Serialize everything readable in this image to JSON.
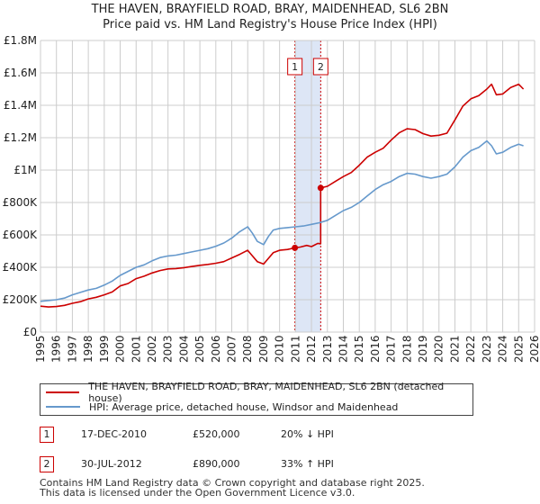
{
  "title_line1": "THE HAVEN, BRAYFIELD ROAD, BRAY, MAIDENHEAD, SL6 2BN",
  "title_line2": "Price paid vs. HM Land Registry's House Price Index (HPI)",
  "colors": {
    "property": "#cc0000",
    "hpi": "#6699cc",
    "highlight": "#dde6f6",
    "grid": "#cccccc"
  },
  "legend": {
    "property": "THE HAVEN, BRAYFIELD ROAD, BRAY, MAIDENHEAD, SL6 2BN (detached house)",
    "hpi": "HPI: Average price, detached house, Windsor and Maidenhead"
  },
  "transactions": [
    {
      "marker": "1",
      "date": "17-DEC-2010",
      "price": "£520,000",
      "delta": "20% ↓ HPI"
    },
    {
      "marker": "2",
      "date": "30-JUL-2012",
      "price": "£890,000",
      "delta": "33% ↑ HPI"
    }
  ],
  "footer_line1": "Contains HM Land Registry data © Crown copyright and database right 2025.",
  "footer_line2": "This data is licensed under the Open Government Licence v3.0.",
  "chart_data": {
    "type": "line",
    "xlim": [
      1995,
      2026
    ],
    "ylim": [
      0,
      1800000
    ],
    "x_ticks": [
      1995,
      1996,
      1997,
      1998,
      1999,
      2000,
      2001,
      2002,
      2003,
      2004,
      2005,
      2006,
      2007,
      2008,
      2009,
      2010,
      2011,
      2012,
      2013,
      2014,
      2015,
      2016,
      2017,
      2018,
      2019,
      2020,
      2021,
      2022,
      2023,
      2024,
      2025,
      2026
    ],
    "y_ticks": [
      {
        "value": 0,
        "label": "£0"
      },
      {
        "value": 200000,
        "label": "£200K"
      },
      {
        "value": 400000,
        "label": "£400K"
      },
      {
        "value": 600000,
        "label": "£600K"
      },
      {
        "value": 800000,
        "label": "£800K"
      },
      {
        "value": 1000000,
        "label": "£1M"
      },
      {
        "value": 1200000,
        "label": "£1.2M"
      },
      {
        "value": 1400000,
        "label": "£1.4M"
      },
      {
        "value": 1600000,
        "label": "£1.6M"
      },
      {
        "value": 1800000,
        "label": "£1.8M"
      }
    ],
    "highlight_span": [
      2010.96,
      2012.58
    ],
    "sales": [
      {
        "label": "1",
        "x": 2010.96,
        "y": 520000
      },
      {
        "label": "2",
        "x": 2012.58,
        "y": 890000
      }
    ],
    "series": [
      {
        "name": "THE HAVEN, BRAYFIELD ROAD, BRAY, MAIDENHEAD, SL6 2BN (detached house)",
        "key": "property",
        "x": [
          1995,
          1995.5,
          1996,
          1996.5,
          1997,
          1997.5,
          1998,
          1998.5,
          1999,
          1999.5,
          2000,
          2000.5,
          2001,
          2001.5,
          2002,
          2002.5,
          2003,
          2003.5,
          2004,
          2004.5,
          2005,
          2005.5,
          2006,
          2006.5,
          2007,
          2007.5,
          2008,
          2008.3,
          2008.6,
          2009,
          2009.3,
          2009.6,
          2010,
          2010.5,
          2010.96,
          2011.3,
          2011.7,
          2012,
          2012.4,
          2012.58,
          2012.58,
          2013,
          2013.5,
          2014,
          2014.5,
          2015,
          2015.5,
          2016,
          2016.5,
          2017,
          2017.5,
          2018,
          2018.5,
          2019,
          2019.5,
          2020,
          2020.5,
          2021,
          2021.5,
          2022,
          2022.5,
          2023,
          2023.3,
          2023.6,
          2024,
          2024.5,
          2025,
          2025.3
        ],
        "y": [
          160000,
          155000,
          158000,
          165000,
          178000,
          188000,
          205000,
          215000,
          230000,
          248000,
          285000,
          300000,
          330000,
          345000,
          365000,
          380000,
          390000,
          392000,
          398000,
          405000,
          412000,
          418000,
          425000,
          435000,
          458000,
          480000,
          505000,
          470000,
          435000,
          420000,
          455000,
          490000,
          505000,
          510000,
          520000,
          525000,
          535000,
          528000,
          548000,
          545000,
          890000,
          900000,
          930000,
          960000,
          985000,
          1030000,
          1080000,
          1110000,
          1135000,
          1185000,
          1230000,
          1255000,
          1250000,
          1225000,
          1210000,
          1215000,
          1228000,
          1310000,
          1395000,
          1440000,
          1460000,
          1500000,
          1530000,
          1465000,
          1470000,
          1510000,
          1530000,
          1500000
        ]
      },
      {
        "name": "HPI: Average price, detached house, Windsor and Maidenhead",
        "key": "hpi",
        "x": [
          1995,
          1995.5,
          1996,
          1996.5,
          1997,
          1997.5,
          1998,
          1998.5,
          1999,
          1999.5,
          2000,
          2000.5,
          2001,
          2001.5,
          2002,
          2002.5,
          2003,
          2003.5,
          2004,
          2004.5,
          2005,
          2005.5,
          2006,
          2006.5,
          2007,
          2007.5,
          2008,
          2008.3,
          2008.6,
          2009,
          2009.3,
          2009.6,
          2010,
          2010.5,
          2011,
          2011.5,
          2012,
          2012.5,
          2013,
          2013.5,
          2014,
          2014.5,
          2015,
          2015.5,
          2016,
          2016.5,
          2017,
          2017.5,
          2018,
          2018.5,
          2019,
          2019.5,
          2020,
          2020.5,
          2021,
          2021.5,
          2022,
          2022.5,
          2023,
          2023.3,
          2023.6,
          2024,
          2024.5,
          2025,
          2025.3
        ],
        "y": [
          190000,
          195000,
          200000,
          210000,
          230000,
          245000,
          260000,
          270000,
          290000,
          315000,
          350000,
          375000,
          400000,
          415000,
          440000,
          460000,
          470000,
          475000,
          485000,
          495000,
          505000,
          515000,
          530000,
          550000,
          580000,
          620000,
          650000,
          610000,
          560000,
          540000,
          590000,
          630000,
          640000,
          645000,
          650000,
          655000,
          665000,
          675000,
          690000,
          720000,
          750000,
          770000,
          800000,
          840000,
          880000,
          910000,
          930000,
          960000,
          980000,
          975000,
          960000,
          950000,
          960000,
          975000,
          1020000,
          1080000,
          1120000,
          1140000,
          1180000,
          1150000,
          1100000,
          1110000,
          1140000,
          1160000,
          1150000
        ]
      }
    ]
  }
}
